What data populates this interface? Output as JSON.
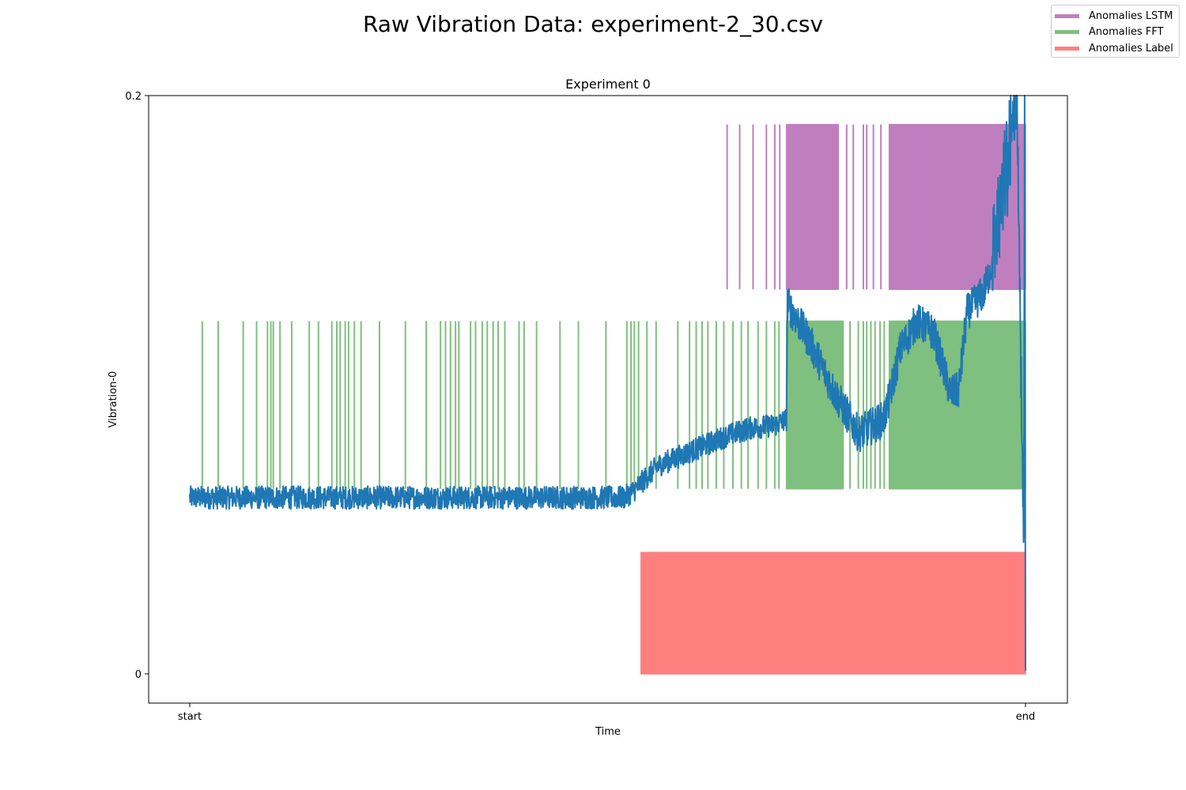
{
  "figure": {
    "title": "Raw Vibration Data: experiment-2_30.csv"
  },
  "legend": {
    "items": [
      {
        "label": "Anomalies LSTM",
        "color": "#bf7fbf"
      },
      {
        "label": "Anomalies FFT",
        "color": "#7fbf7f"
      },
      {
        "label": "Anomalies Label",
        "color": "#ff7f7f"
      }
    ]
  },
  "chart_data": {
    "type": "line",
    "title": "Experiment 0",
    "xlabel": "Time",
    "ylabel": "Vibration-0",
    "x_ticks": [
      {
        "label": "start",
        "value": 0
      },
      {
        "label": "end",
        "value": 1
      }
    ],
    "y_ticks": [
      {
        "label": "0",
        "value": 0
      },
      {
        "label": "0.2",
        "value": 0.2
      }
    ],
    "xlim": [
      -0.05,
      1.05
    ],
    "ylim": [
      -0.01,
      0.2
    ],
    "grid": false,
    "legend_placement": "top-right (figure)",
    "series": [
      {
        "name": "Vibration-0",
        "color": "#1f77b4",
        "trend": [
          [
            0.0,
            0.061
          ],
          [
            0.1,
            0.061
          ],
          [
            0.2,
            0.061
          ],
          [
            0.3,
            0.061
          ],
          [
            0.4,
            0.061
          ],
          [
            0.5,
            0.061
          ],
          [
            0.52,
            0.061
          ],
          [
            0.53,
            0.063
          ],
          [
            0.56,
            0.072
          ],
          [
            0.6,
            0.077
          ],
          [
            0.64,
            0.082
          ],
          [
            0.67,
            0.085
          ],
          [
            0.7,
            0.086
          ],
          [
            0.714,
            0.088
          ],
          [
            0.715,
            0.128
          ],
          [
            0.74,
            0.116
          ],
          [
            0.77,
            0.098
          ],
          [
            0.8,
            0.083
          ],
          [
            0.83,
            0.088
          ],
          [
            0.837,
            0.095
          ],
          [
            0.85,
            0.112
          ],
          [
            0.87,
            0.122
          ],
          [
            0.89,
            0.118
          ],
          [
            0.91,
            0.097
          ],
          [
            0.92,
            0.098
          ],
          [
            0.93,
            0.125
          ],
          [
            0.95,
            0.132
          ],
          [
            0.96,
            0.142
          ],
          [
            0.975,
            0.168
          ],
          [
            0.99,
            0.198
          ],
          [
            1.0,
            0.001
          ]
        ],
        "noise": 0.008
      }
    ],
    "anomaly_bands": [
      {
        "name": "Anomalies LSTM",
        "color": "#bf7fbf",
        "y_range": [
          0.133,
          0.19
        ],
        "spans": [
          [
            0.714,
            0.776
          ],
          [
            0.837,
            1.0
          ]
        ],
        "spikes": [
          0.643,
          0.658,
          0.674,
          0.69,
          0.7,
          0.706,
          0.73,
          0.75,
          0.768,
          0.786,
          0.794,
          0.806,
          0.81,
          0.818,
          0.827,
          0.845,
          0.86,
          0.868,
          0.88,
          0.9
        ]
      },
      {
        "name": "Anomalies FFT",
        "color": "#7fbf7f",
        "y_range": [
          0.064,
          0.122
        ],
        "spans": [
          [
            0.714,
            0.782
          ],
          [
            0.837,
            1.0
          ]
        ],
        "spikes": [
          0.015,
          0.034,
          0.064,
          0.08,
          0.093,
          0.097,
          0.1,
          0.108,
          0.122,
          0.143,
          0.154,
          0.17,
          0.176,
          0.18,
          0.186,
          0.19,
          0.197,
          0.205,
          0.227,
          0.258,
          0.283,
          0.3,
          0.306,
          0.312,
          0.318,
          0.322,
          0.336,
          0.342,
          0.35,
          0.356,
          0.363,
          0.369,
          0.377,
          0.394,
          0.4,
          0.415,
          0.443,
          0.465,
          0.498,
          0.523,
          0.528,
          0.532,
          0.537,
          0.547,
          0.558,
          0.584,
          0.598,
          0.606,
          0.613,
          0.62,
          0.63,
          0.639,
          0.65,
          0.66,
          0.668,
          0.68,
          0.69,
          0.7,
          0.705,
          0.79,
          0.8,
          0.806,
          0.81,
          0.815,
          0.82,
          0.826,
          0.831
        ]
      },
      {
        "name": "Anomalies Label",
        "color": "#ff7f7f",
        "y_range": [
          0.0,
          0.042
        ],
        "spans": [
          [
            0.54,
            1.0
          ]
        ],
        "spikes": []
      }
    ]
  }
}
